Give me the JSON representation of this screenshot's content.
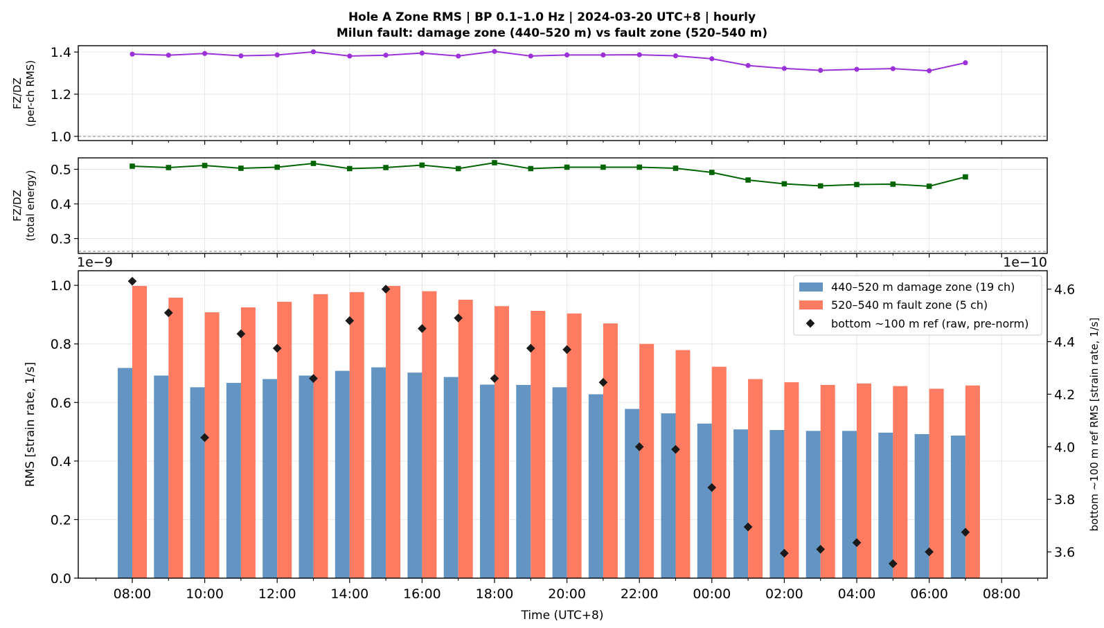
{
  "header": {
    "title_line1": "Hole A Zone RMS  |  BP 0.1–1.0 Hz  |  2024-03-20 UTC+8  |  hourly",
    "title_line2": "Milun fault: damage zone (440–520 m) vs fault zone (520–540 m)"
  },
  "colors": {
    "ratio_rms": "#9b30d9",
    "ratio_energy": "#006400",
    "damage_zone": "#6494c1",
    "fault_zone": "#ff7b61",
    "reference": "#1a1a1a"
  },
  "chart_data": [
    {
      "type": "line",
      "ylabel_line1": "FZ/DZ",
      "ylabel_line2": "(per-ch RMS)",
      "ylim": [
        0.98,
        1.43
      ],
      "yticks": [
        1.0,
        1.2,
        1.4
      ],
      "ytick_labels": [
        "1.0",
        "1.2",
        "1.4"
      ],
      "reference_line": 1.0,
      "grid": true,
      "x_hours": [
        0,
        1,
        2,
        3,
        4,
        5,
        6,
        7,
        8,
        9,
        10,
        11,
        12,
        13,
        14,
        15,
        16,
        17,
        18,
        19,
        20,
        21,
        22,
        23
      ],
      "values": [
        1.39,
        1.385,
        1.393,
        1.382,
        1.386,
        1.401,
        1.381,
        1.385,
        1.395,
        1.381,
        1.403,
        1.381,
        1.386,
        1.386,
        1.387,
        1.382,
        1.368,
        1.336,
        1.322,
        1.313,
        1.318,
        1.321,
        1.311,
        1.349
      ]
    },
    {
      "type": "line",
      "ylabel_line1": "FZ/DZ",
      "ylabel_line2": "(total energy)",
      "ylim": [
        0.257,
        0.533
      ],
      "yticks": [
        0.3,
        0.4,
        0.5
      ],
      "ytick_labels": [
        "0.3",
        "0.4",
        "0.5"
      ],
      "reference_line": 0.263,
      "grid": true,
      "x_hours": [
        0,
        1,
        2,
        3,
        4,
        5,
        6,
        7,
        8,
        9,
        10,
        11,
        12,
        13,
        14,
        15,
        16,
        17,
        18,
        19,
        20,
        21,
        22,
        23
      ],
      "values": [
        0.509,
        0.505,
        0.511,
        0.503,
        0.506,
        0.517,
        0.502,
        0.505,
        0.512,
        0.502,
        0.519,
        0.502,
        0.506,
        0.506,
        0.506,
        0.503,
        0.491,
        0.469,
        0.458,
        0.452,
        0.456,
        0.457,
        0.451,
        0.478
      ]
    },
    {
      "type": "bar",
      "xlabel": "Time (UTC+8)",
      "ylabel": "RMS  [strain rate, 1/s]",
      "ylabel_right": "bottom ~100 m ref RMS  [strain rate, 1/s]",
      "offset_left": "1e−9",
      "offset_right": "1e−10",
      "ylim": [
        0.0,
        1.05
      ],
      "yticks": [
        0.0,
        0.2,
        0.4,
        0.6,
        0.8,
        1.0
      ],
      "ytick_labels": [
        "0.0",
        "0.2",
        "0.4",
        "0.6",
        "0.8",
        "1.0"
      ],
      "ylim_right": [
        3.5,
        4.67
      ],
      "yticks_right": [
        3.6,
        3.8,
        4.0,
        4.2,
        4.4,
        4.6
      ],
      "ytick_labels_right": [
        "3.6",
        "3.8",
        "4.0",
        "4.2",
        "4.4",
        "4.6"
      ],
      "grid": true,
      "legend_position": "top-right",
      "x_tick_hours": [
        0,
        2,
        4,
        6,
        8,
        10,
        12,
        14,
        16,
        18,
        20,
        22,
        24
      ],
      "x_tick_labels": [
        "08:00",
        "10:00",
        "12:00",
        "14:00",
        "16:00",
        "18:00",
        "20:00",
        "22:00",
        "00:00",
        "02:00",
        "04:00",
        "06:00",
        "08:00"
      ],
      "x_hours": [
        0,
        1,
        2,
        3,
        4,
        5,
        6,
        7,
        8,
        9,
        10,
        11,
        12,
        13,
        14,
        15,
        16,
        17,
        18,
        19,
        20,
        21,
        22,
        23
      ],
      "series": [
        {
          "name": "440–520 m  damage zone (19 ch)",
          "values": [
            0.718,
            0.692,
            0.652,
            0.667,
            0.68,
            0.692,
            0.708,
            0.72,
            0.702,
            0.687,
            0.661,
            0.66,
            0.652,
            0.628,
            0.578,
            0.563,
            0.528,
            0.508,
            0.506,
            0.503,
            0.503,
            0.497,
            0.492,
            0.487
          ]
        },
        {
          "name": "520–540 m  fault zone (5 ch)",
          "values": [
            0.998,
            0.958,
            0.908,
            0.925,
            0.944,
            0.97,
            0.977,
            0.998,
            0.98,
            0.951,
            0.929,
            0.913,
            0.904,
            0.87,
            0.8,
            0.779,
            0.722,
            0.68,
            0.669,
            0.66,
            0.665,
            0.656,
            0.647,
            0.658
          ]
        },
        {
          "name": "bottom ~100 m ref (raw, pre-norm)",
          "axis": "right",
          "values": [
            4.63,
            4.51,
            4.035,
            4.43,
            4.375,
            4.26,
            4.48,
            4.6,
            4.45,
            4.49,
            4.26,
            4.375,
            4.37,
            4.245,
            4.0,
            3.99,
            3.845,
            3.695,
            3.595,
            3.61,
            3.635,
            3.555,
            3.6,
            3.675
          ]
        }
      ]
    }
  ]
}
